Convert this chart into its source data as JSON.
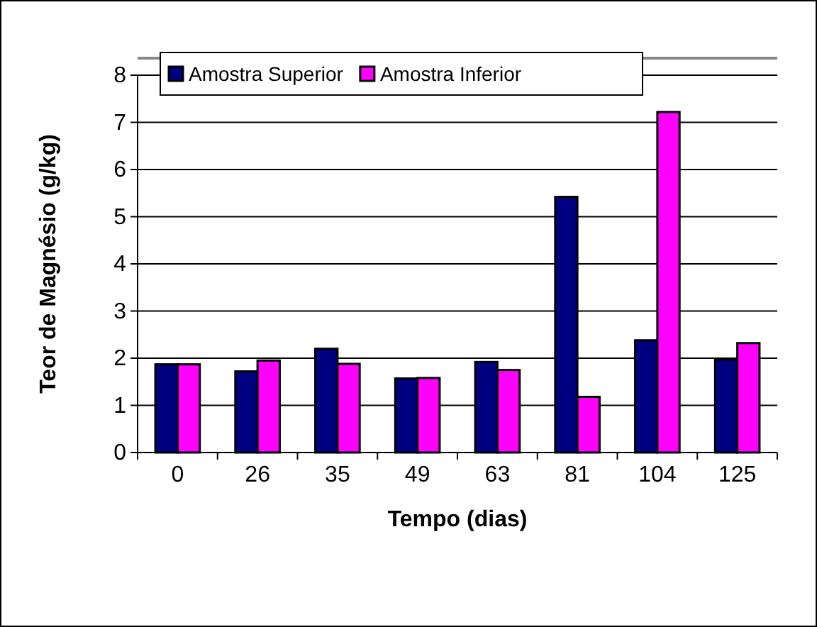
{
  "chart_data": {
    "type": "bar",
    "xlabel": "Tempo (dias)",
    "ylabel": "Teor de Magnésio (g/kg)",
    "categories": [
      "0",
      "26",
      "35",
      "49",
      "63",
      "81",
      "104",
      "125"
    ],
    "series": [
      {
        "name": "Amostra Superior",
        "color": "#000080",
        "values": [
          1.87,
          1.72,
          2.2,
          1.57,
          1.92,
          5.42,
          2.38,
          1.97
        ]
      },
      {
        "name": "Amostra Inferior",
        "color": "#ff00ff",
        "values": [
          1.87,
          1.95,
          1.88,
          1.58,
          1.75,
          1.18,
          7.22,
          2.32
        ]
      }
    ],
    "ylim": [
      0,
      8
    ],
    "yticks": [
      0,
      1,
      2,
      3,
      4,
      5,
      6,
      7,
      8
    ],
    "grid": "y",
    "legend": "top left"
  }
}
